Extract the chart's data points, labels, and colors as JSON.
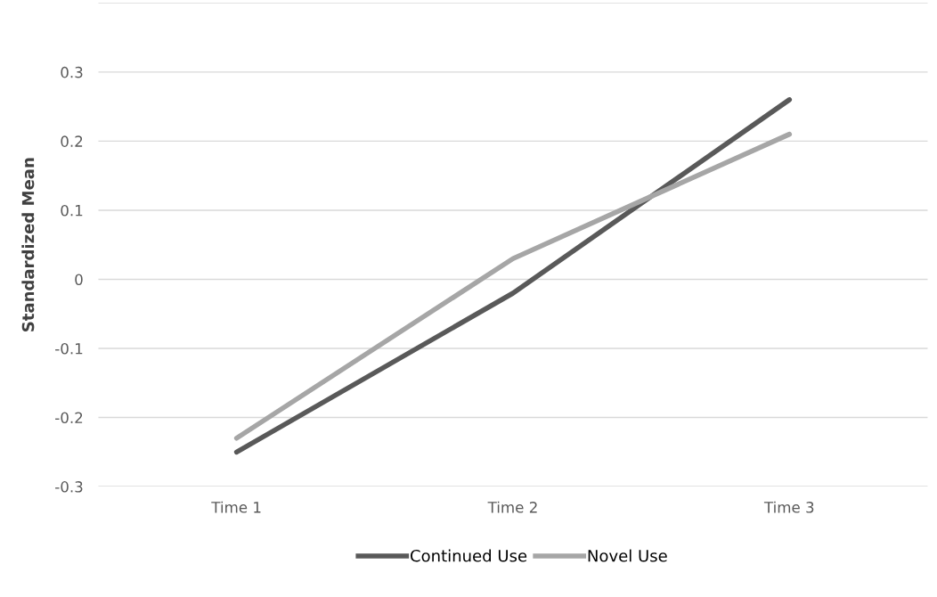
{
  "chart_data": {
    "type": "line",
    "ylabel": "Standardized Mean",
    "categories": [
      "Time 1",
      "Time 2",
      "Time 3"
    ],
    "series": [
      {
        "name": "Continued Use",
        "color": "#595959",
        "values": [
          -0.25,
          -0.02,
          0.26
        ]
      },
      {
        "name": "Novel Use",
        "color": "#a6a6a6",
        "values": [
          -0.23,
          0.03,
          0.21
        ]
      }
    ],
    "ylim": [
      -0.3,
      0.4
    ],
    "yticks": [
      -0.3,
      -0.2,
      -0.1,
      0,
      0.1,
      0.2,
      0.3,
      {
        "value": 0.4,
        "label": null
      }
    ],
    "grid": "y",
    "legend": "bottom",
    "marker": "none",
    "line_style": "solid"
  }
}
